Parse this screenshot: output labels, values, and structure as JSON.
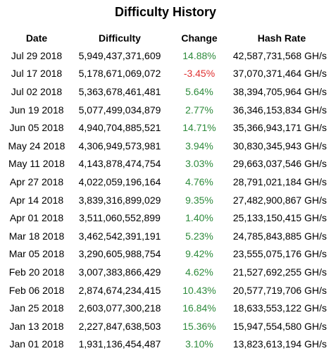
{
  "title": "Difficulty History",
  "columns": {
    "date": "Date",
    "difficulty": "Difficulty",
    "change": "Change",
    "hashrate": "Hash Rate"
  },
  "colors": {
    "positive": "#2e8b3c",
    "negative": "#e03030"
  },
  "rows": [
    {
      "date": "Jul 29 2018",
      "difficulty": "5,949,437,371,609",
      "change": "14.88%",
      "hashrate": "42,587,731,568 GH/s"
    },
    {
      "date": "Jul 17 2018",
      "difficulty": "5,178,671,069,072",
      "change": "-3.45%",
      "hashrate": "37,070,371,464 GH/s"
    },
    {
      "date": "Jul 02 2018",
      "difficulty": "5,363,678,461,481",
      "change": "5.64%",
      "hashrate": "38,394,705,964 GH/s"
    },
    {
      "date": "Jun 19 2018",
      "difficulty": "5,077,499,034,879",
      "change": "2.77%",
      "hashrate": "36,346,153,834 GH/s"
    },
    {
      "date": "Jun 05 2018",
      "difficulty": "4,940,704,885,521",
      "change": "14.71%",
      "hashrate": "35,366,943,171 GH/s"
    },
    {
      "date": "May 24 2018",
      "difficulty": "4,306,949,573,981",
      "change": "3.94%",
      "hashrate": "30,830,345,943 GH/s"
    },
    {
      "date": "May 11 2018",
      "difficulty": "4,143,878,474,754",
      "change": "3.03%",
      "hashrate": "29,663,037,546 GH/s"
    },
    {
      "date": "Apr 27 2018",
      "difficulty": "4,022,059,196,164",
      "change": "4.76%",
      "hashrate": "28,791,021,184 GH/s"
    },
    {
      "date": "Apr 14 2018",
      "difficulty": "3,839,316,899,029",
      "change": "9.35%",
      "hashrate": "27,482,900,867 GH/s"
    },
    {
      "date": "Apr 01 2018",
      "difficulty": "3,511,060,552,899",
      "change": "1.40%",
      "hashrate": "25,133,150,415 GH/s"
    },
    {
      "date": "Mar 18 2018",
      "difficulty": "3,462,542,391,191",
      "change": "5.23%",
      "hashrate": "24,785,843,885 GH/s"
    },
    {
      "date": "Mar 05 2018",
      "difficulty": "3,290,605,988,754",
      "change": "9.42%",
      "hashrate": "23,555,075,176 GH/s"
    },
    {
      "date": "Feb 20 2018",
      "difficulty": "3,007,383,866,429",
      "change": "4.62%",
      "hashrate": "21,527,692,255 GH/s"
    },
    {
      "date": "Feb 06 2018",
      "difficulty": "2,874,674,234,415",
      "change": "10.43%",
      "hashrate": "20,577,719,706 GH/s"
    },
    {
      "date": "Jan 25 2018",
      "difficulty": "2,603,077,300,218",
      "change": "16.84%",
      "hashrate": "18,633,553,122 GH/s"
    },
    {
      "date": "Jan 13 2018",
      "difficulty": "2,227,847,638,503",
      "change": "15.36%",
      "hashrate": "15,947,554,580 GH/s"
    },
    {
      "date": "Jan 01 2018",
      "difficulty": "1,931,136,454,487",
      "change": "3.10%",
      "hashrate": "13,823,613,194 GH/s"
    }
  ]
}
